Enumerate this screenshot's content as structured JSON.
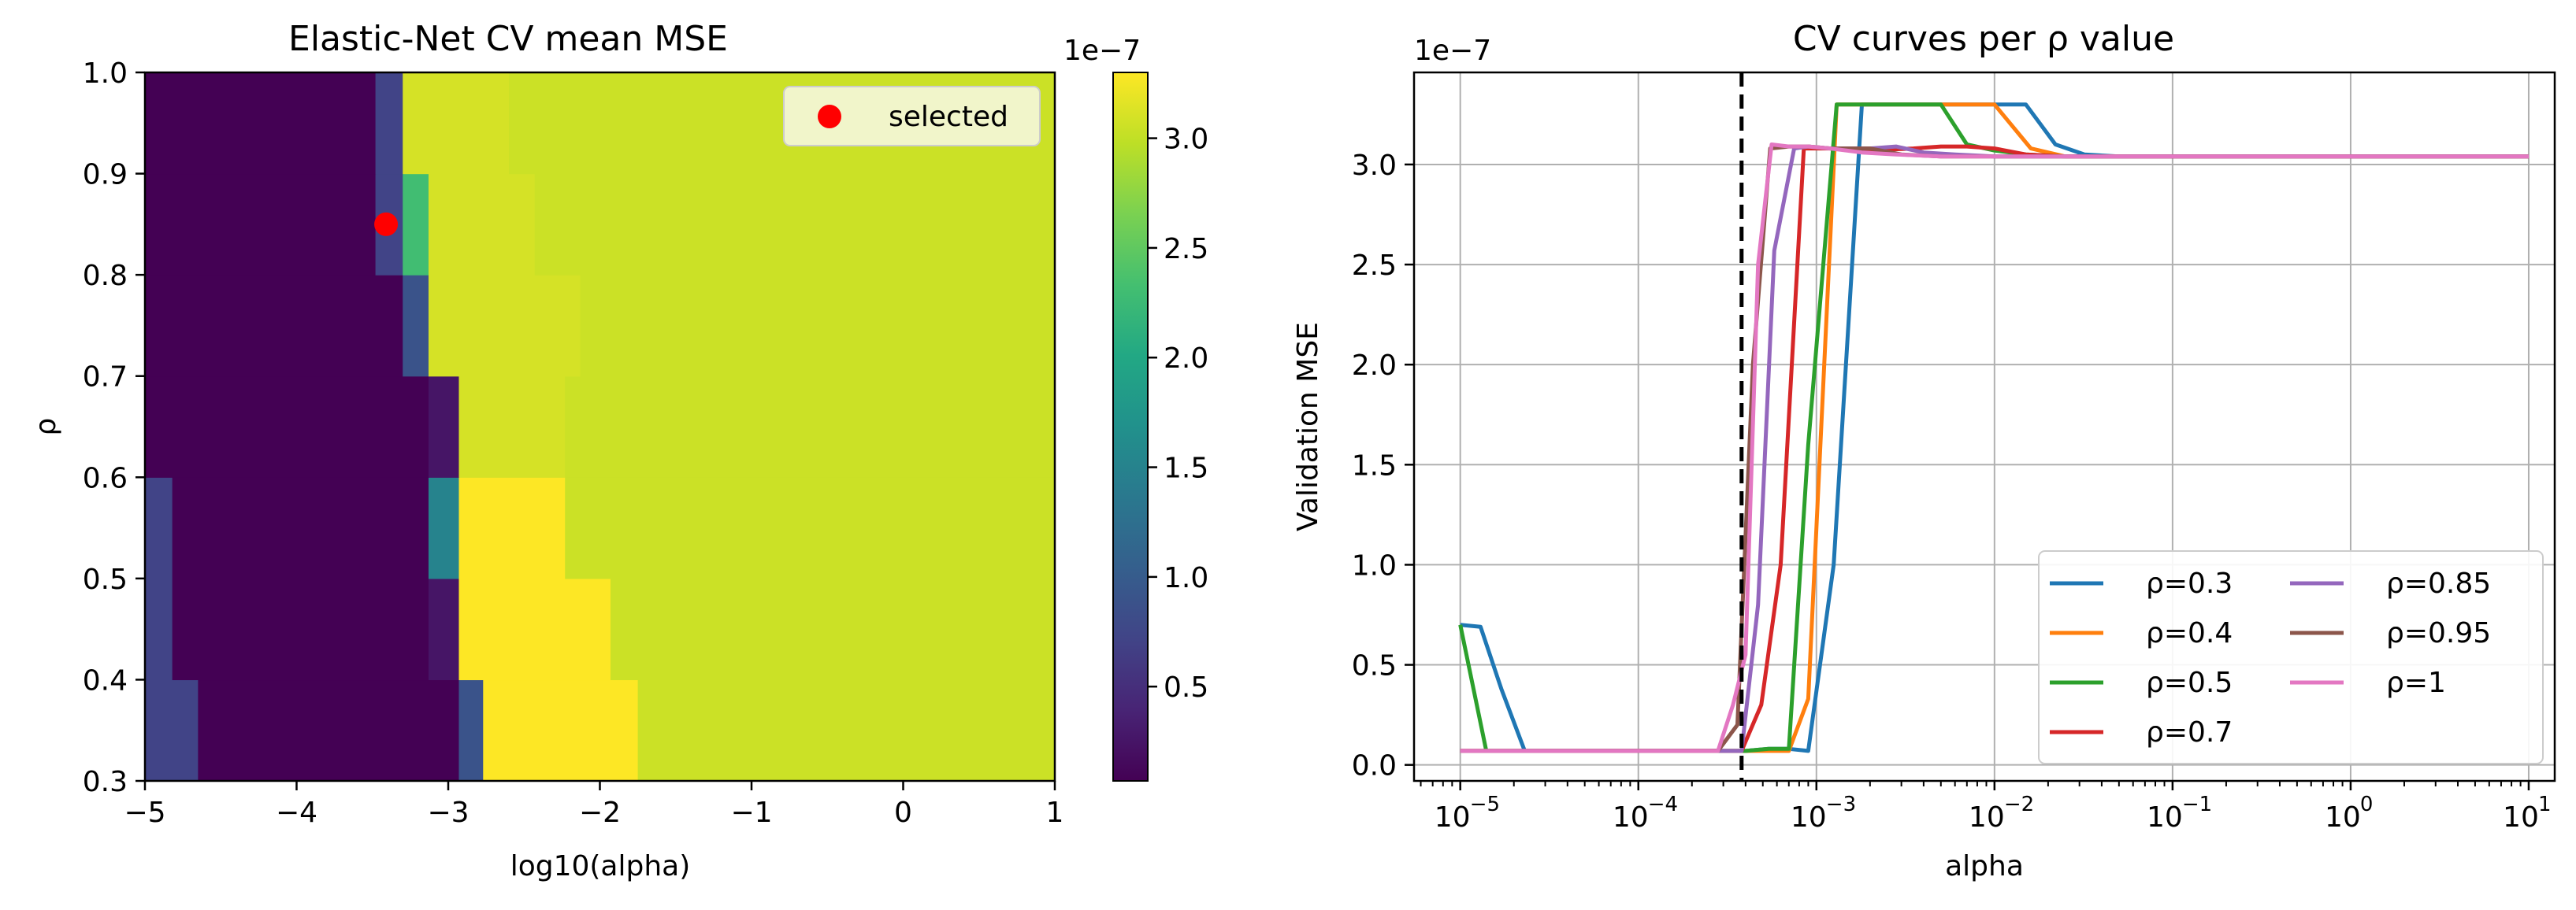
{
  "figure": {
    "background": "#ffffff"
  },
  "chart_data": [
    {
      "type": "heatmap",
      "title": "Elastic-Net CV mean MSE",
      "xlabel": "log10(alpha)",
      "ylabel": "ρ",
      "xlim": [
        -5,
        1
      ],
      "ylim": [
        0.3,
        1.0
      ],
      "xticks": [
        -5,
        -4,
        -3,
        -2,
        -1,
        0,
        1
      ],
      "xtick_labels": [
        "−5",
        "−4",
        "−3",
        "−2",
        "−1",
        "0",
        "1"
      ],
      "yticks": [
        0.3,
        0.4,
        0.5,
        0.6,
        0.7,
        0.8,
        0.9,
        1.0
      ],
      "ytick_labels": [
        "0.3",
        "0.4",
        "0.5",
        "0.6",
        "0.7",
        "0.8",
        "0.9",
        "1.0"
      ],
      "colormap": "viridis",
      "colorbar": {
        "min": 0.07,
        "max": 3.3,
        "ticks": [
          0.5,
          1.0,
          1.5,
          2.0,
          2.5,
          3.0
        ],
        "tick_labels": [
          "0.5",
          "1.0",
          "1.5",
          "2.0",
          "2.5",
          "3.0"
        ],
        "offset_text": "1e−7"
      },
      "row_edges": [
        0.3,
        0.4,
        0.5,
        0.6,
        0.7,
        0.8,
        0.9,
        1.0
      ],
      "cells": [
        {
          "y": [
            0.3,
            0.4
          ],
          "segments": [
            [
              -5,
              -4.65,
              0.72
            ],
            [
              -4.65,
              -2.93,
              0.07
            ],
            [
              -2.93,
              -2.77,
              0.9
            ],
            [
              -2.77,
              -1.75,
              3.3
            ],
            [
              -1.75,
              1.0,
              3.05
            ]
          ]
        },
        {
          "y": [
            0.4,
            0.5
          ],
          "segments": [
            [
              -5,
              -4.82,
              0.72
            ],
            [
              -4.82,
              -3.13,
              0.07
            ],
            [
              -3.13,
              -2.93,
              0.25
            ],
            [
              -2.93,
              -1.93,
              3.3
            ],
            [
              -1.93,
              1.0,
              3.05
            ]
          ]
        },
        {
          "y": [
            0.5,
            0.6
          ],
          "segments": [
            [
              -5,
              -4.82,
              0.72
            ],
            [
              -4.82,
              -3.13,
              0.07
            ],
            [
              -3.13,
              -2.93,
              1.5
            ],
            [
              -2.93,
              -2.23,
              3.3
            ],
            [
              -2.23,
              1.0,
              3.05
            ]
          ]
        },
        {
          "y": [
            0.6,
            0.7
          ],
          "segments": [
            [
              -5,
              -3.13,
              0.07
            ],
            [
              -3.13,
              -2.93,
              0.25
            ],
            [
              -2.93,
              -2.23,
              3.1
            ],
            [
              -2.23,
              1.0,
              3.05
            ]
          ]
        },
        {
          "y": [
            0.7,
            0.8
          ],
          "segments": [
            [
              -5,
              -3.3,
              0.07
            ],
            [
              -3.3,
              -3.13,
              0.9
            ],
            [
              -3.13,
              -2.13,
              3.1
            ],
            [
              -2.13,
              1.0,
              3.05
            ]
          ]
        },
        {
          "y": [
            0.8,
            0.9
          ],
          "segments": [
            [
              -5,
              -3.48,
              0.07
            ],
            [
              -3.48,
              -3.3,
              0.72
            ],
            [
              -3.3,
              -3.13,
              2.3
            ],
            [
              -3.13,
              -2.43,
              3.1
            ],
            [
              -2.43,
              1.0,
              3.05
            ]
          ]
        },
        {
          "y": [
            0.9,
            1.0
          ],
          "segments": [
            [
              -5,
              -3.48,
              0.07
            ],
            [
              -3.48,
              -3.3,
              0.72
            ],
            [
              -3.3,
              -2.6,
              3.1
            ],
            [
              -2.6,
              1.0,
              3.05
            ]
          ]
        }
      ],
      "selected_point": {
        "x": -3.41,
        "y": 0.85,
        "color": "#ff0000"
      },
      "legend": [
        {
          "label": "selected",
          "color": "#ff0000"
        }
      ],
      "legend_position": "upper right"
    },
    {
      "type": "line",
      "title": "CV curves per ρ value",
      "xlabel": "alpha",
      "ylabel": "Validation MSE",
      "xscale": "log",
      "xlim": [
        5.5e-06,
        14
      ],
      "ylim": [
        -0.08,
        3.46
      ],
      "y_offset_text": "1e−7",
      "xticks": [
        1e-05,
        0.0001,
        0.001,
        0.01,
        0.1,
        1,
        10
      ],
      "xtick_labels": [
        [
          "10",
          "−5"
        ],
        [
          "10",
          "−4"
        ],
        [
          "10",
          "−3"
        ],
        [
          "10",
          "−2"
        ],
        [
          "10",
          "−1"
        ],
        [
          "10",
          "0"
        ],
        [
          "10",
          "1"
        ]
      ],
      "yticks": [
        0.0,
        0.5,
        1.0,
        1.5,
        2.0,
        2.5,
        3.0
      ],
      "ytick_labels": [
        "0.0",
        "0.5",
        "1.0",
        "1.5",
        "2.0",
        "2.5",
        "3.0"
      ],
      "grid": true,
      "vline": {
        "x": 0.00038,
        "style": "dashed",
        "color": "#000000"
      },
      "legend_position": "lower right",
      "legend_columns": 2,
      "series": [
        {
          "name": "ρ=0.3",
          "color": "#1f77b4",
          "x": [
            1e-05,
            1.3e-05,
            1.7e-05,
            2.3e-05,
            3e-05,
            0.0001,
            0.00028,
            0.0004,
            0.00054,
            0.0007,
            0.0009,
            0.00125,
            0.0018,
            0.0025,
            0.0035,
            0.0045,
            0.006,
            0.008,
            0.011,
            0.015,
            0.022,
            0.032,
            0.05,
            0.1,
            1,
            10
          ],
          "y": [
            0.7,
            0.69,
            0.38,
            0.07,
            0.07,
            0.07,
            0.07,
            0.07,
            0.08,
            0.08,
            0.07,
            1.0,
            3.3,
            3.3,
            3.3,
            3.3,
            3.3,
            3.3,
            3.3,
            3.3,
            3.1,
            3.05,
            3.04,
            3.04,
            3.04,
            3.04
          ]
        },
        {
          "name": "ρ=0.4",
          "color": "#ff7f0e",
          "x": [
            1e-05,
            3e-05,
            0.0001,
            0.00028,
            0.0004,
            0.00054,
            0.0007,
            0.0009,
            0.0013,
            0.002,
            0.0035,
            0.005,
            0.007,
            0.01,
            0.016,
            0.025,
            0.05,
            0.1,
            1,
            10
          ],
          "y": [
            0.07,
            0.07,
            0.07,
            0.07,
            0.07,
            0.07,
            0.07,
            0.33,
            3.3,
            3.3,
            3.3,
            3.3,
            3.3,
            3.3,
            3.08,
            3.04,
            3.04,
            3.04,
            3.04,
            3.04
          ]
        },
        {
          "name": "ρ=0.5",
          "color": "#2ca02c",
          "x": [
            1e-05,
            1.4e-05,
            3e-05,
            0.0001,
            0.00028,
            0.0004,
            0.00054,
            0.0007,
            0.0009,
            0.0013,
            0.002,
            0.0035,
            0.005,
            0.007,
            0.01,
            0.015,
            0.025,
            0.1,
            1,
            10
          ],
          "y": [
            0.7,
            0.07,
            0.07,
            0.07,
            0.07,
            0.07,
            0.08,
            0.08,
            1.6,
            3.3,
            3.3,
            3.3,
            3.3,
            3.1,
            3.07,
            3.05,
            3.04,
            3.04,
            3.04,
            3.04
          ]
        },
        {
          "name": "ρ=0.7",
          "color": "#d62728",
          "x": [
            1e-05,
            3e-05,
            0.0001,
            0.00028,
            0.00038,
            0.00049,
            0.00063,
            0.00085,
            0.0012,
            0.002,
            0.0035,
            0.005,
            0.007,
            0.01,
            0.015,
            0.025,
            0.1,
            1,
            10
          ],
          "y": [
            0.07,
            0.07,
            0.07,
            0.07,
            0.07,
            0.3,
            1.0,
            3.08,
            3.08,
            3.07,
            3.08,
            3.09,
            3.09,
            3.08,
            3.05,
            3.04,
            3.04,
            3.04,
            3.04
          ]
        },
        {
          "name": "ρ=0.85",
          "color": "#9467bd",
          "x": [
            1e-05,
            3e-05,
            0.0001,
            0.00028,
            0.00038,
            0.00047,
            0.00058,
            0.00075,
            0.0009,
            0.0012,
            0.002,
            0.0028,
            0.004,
            0.006,
            0.01,
            0.02,
            0.1,
            1,
            10
          ],
          "y": [
            0.07,
            0.07,
            0.07,
            0.07,
            0.07,
            0.8,
            2.57,
            3.08,
            3.09,
            3.08,
            3.08,
            3.09,
            3.06,
            3.05,
            3.04,
            3.04,
            3.04,
            3.04,
            3.04
          ]
        },
        {
          "name": "ρ=0.95",
          "color": "#8c564b",
          "x": [
            1e-05,
            3e-05,
            0.0001,
            0.00028,
            0.00036,
            0.00044,
            0.00055,
            0.0007,
            0.0009,
            0.0012,
            0.002,
            0.003,
            0.005,
            0.01,
            0.02,
            0.1,
            1,
            10
          ],
          "y": [
            0.07,
            0.07,
            0.07,
            0.07,
            0.2,
            2.0,
            3.08,
            3.09,
            3.09,
            3.08,
            3.08,
            3.05,
            3.04,
            3.04,
            3.04,
            3.04,
            3.04,
            3.04
          ]
        },
        {
          "name": "ρ=1",
          "color": "#e377c2",
          "x": [
            1e-05,
            3e-05,
            0.0001,
            0.00028,
            0.00034,
            0.0004,
            0.00047,
            0.00056,
            0.0007,
            0.0009,
            0.0012,
            0.0018,
            0.0028,
            0.005,
            0.01,
            0.02,
            0.1,
            1,
            10
          ],
          "y": [
            0.07,
            0.07,
            0.07,
            0.07,
            0.3,
            0.55,
            2.5,
            3.1,
            3.09,
            3.09,
            3.08,
            3.06,
            3.05,
            3.04,
            3.04,
            3.04,
            3.04,
            3.04,
            3.04
          ]
        }
      ]
    }
  ]
}
